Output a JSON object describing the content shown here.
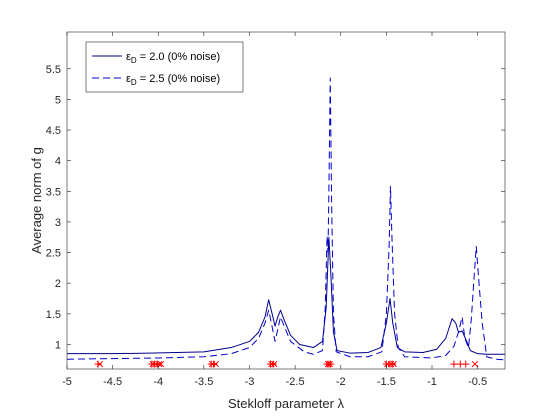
{
  "chart_data": {
    "type": "line",
    "xlabel": "Stekloff parameter λ",
    "ylabel": "Average norm of g",
    "xlim": [
      -5,
      -0.2
    ],
    "ylim": [
      0.6,
      6.1
    ],
    "xticks": [
      "-5",
      "-4.5",
      "-4",
      "-3.5",
      "-3",
      "-2.5",
      "-2",
      "-1.5",
      "-1",
      "-0.5"
    ],
    "yticks": [
      "1",
      "1.5",
      "2",
      "2.5",
      "3",
      "3.5",
      "4",
      "4.5",
      "5",
      "5.5"
    ],
    "grid": false,
    "legend_position": "top-left",
    "series": [
      {
        "name_parts": [
          "ε",
          "D",
          " = 2.0 (0% noise)"
        ],
        "color": "#00008B",
        "style": "solid",
        "points": [
          [
            -5,
            0.85
          ],
          [
            -4.5,
            0.85
          ],
          [
            -4.1,
            0.86
          ],
          [
            -3.8,
            0.87
          ],
          [
            -3.5,
            0.88
          ],
          [
            -3.2,
            0.95
          ],
          [
            -3.0,
            1.05
          ],
          [
            -2.9,
            1.2
          ],
          [
            -2.83,
            1.45
          ],
          [
            -2.79,
            1.73
          ],
          [
            -2.76,
            1.55
          ],
          [
            -2.72,
            1.3
          ],
          [
            -2.69,
            1.45
          ],
          [
            -2.66,
            1.56
          ],
          [
            -2.62,
            1.4
          ],
          [
            -2.55,
            1.15
          ],
          [
            -2.45,
            1.0
          ],
          [
            -2.3,
            0.95
          ],
          [
            -2.2,
            1.05
          ],
          [
            -2.16,
            1.6
          ],
          [
            -2.13,
            2.75
          ],
          [
            -2.11,
            2.2
          ],
          [
            -2.08,
            1.2
          ],
          [
            -2.04,
            0.9
          ],
          [
            -1.9,
            0.86
          ],
          [
            -1.7,
            0.87
          ],
          [
            -1.56,
            0.95
          ],
          [
            -1.5,
            1.35
          ],
          [
            -1.46,
            1.75
          ],
          [
            -1.43,
            1.35
          ],
          [
            -1.38,
            0.95
          ],
          [
            -1.3,
            0.88
          ],
          [
            -1.1,
            0.87
          ],
          [
            -0.95,
            0.92
          ],
          [
            -0.85,
            1.1
          ],
          [
            -0.78,
            1.42
          ],
          [
            -0.74,
            1.35
          ],
          [
            -0.71,
            1.2
          ],
          [
            -0.67,
            1.22
          ],
          [
            -0.62,
            1.05
          ],
          [
            -0.58,
            0.9
          ],
          [
            -0.5,
            0.85
          ],
          [
            -0.4,
            0.84
          ],
          [
            -0.2,
            0.84
          ]
        ]
      },
      {
        "name_parts": [
          "ε",
          "D",
          " = 2.5 (0% noise)"
        ],
        "color": "#0000CD",
        "style": "dashed",
        "points": [
          [
            -5,
            0.76
          ],
          [
            -4.5,
            0.77
          ],
          [
            -4.0,
            0.78
          ],
          [
            -3.5,
            0.8
          ],
          [
            -3.2,
            0.85
          ],
          [
            -3.0,
            0.95
          ],
          [
            -2.9,
            1.1
          ],
          [
            -2.83,
            1.35
          ],
          [
            -2.79,
            1.56
          ],
          [
            -2.76,
            1.35
          ],
          [
            -2.72,
            1.05
          ],
          [
            -2.69,
            1.25
          ],
          [
            -2.66,
            1.45
          ],
          [
            -2.62,
            1.3
          ],
          [
            -2.55,
            1.05
          ],
          [
            -2.4,
            0.88
          ],
          [
            -2.3,
            0.84
          ],
          [
            -2.2,
            0.9
          ],
          [
            -2.17,
            1.6
          ],
          [
            -2.15,
            2.77
          ],
          [
            -2.14,
            2.5
          ],
          [
            -2.13,
            3.5
          ],
          [
            -2.115,
            5.35
          ],
          [
            -2.1,
            3.3
          ],
          [
            -2.08,
            1.5
          ],
          [
            -2.05,
            0.88
          ],
          [
            -1.9,
            0.8
          ],
          [
            -1.7,
            0.8
          ],
          [
            -1.55,
            0.88
          ],
          [
            -1.5,
            1.5
          ],
          [
            -1.47,
            2.6
          ],
          [
            -1.455,
            3.58
          ],
          [
            -1.44,
            2.8
          ],
          [
            -1.41,
            1.5
          ],
          [
            -1.37,
            0.95
          ],
          [
            -1.3,
            0.8
          ],
          [
            -1.0,
            0.78
          ],
          [
            -0.85,
            0.82
          ],
          [
            -0.76,
            0.97
          ],
          [
            -0.71,
            1.2
          ],
          [
            -0.67,
            1.45
          ],
          [
            -0.64,
            1.1
          ],
          [
            -0.6,
            0.95
          ],
          [
            -0.57,
            1.4
          ],
          [
            -0.535,
            2.18
          ],
          [
            -0.515,
            2.6
          ],
          [
            -0.49,
            2.1
          ],
          [
            -0.45,
            1.35
          ],
          [
            -0.4,
            0.8
          ],
          [
            -0.3,
            0.76
          ],
          [
            -0.2,
            0.75
          ]
        ]
      }
    ],
    "markers": {
      "color": "#FF0000",
      "baseline_y": 0.68,
      "plus_x": [
        -4.66,
        -4.07,
        -4.04,
        -4.01,
        -3.42,
        -3.39,
        -2.77,
        -2.74,
        -2.15,
        -2.13,
        -2.11,
        -1.5,
        -1.46,
        -1.43,
        -0.76,
        -0.69,
        -0.63
      ],
      "cross_x": [
        -4.64,
        -4.06,
        -4.03,
        -3.99,
        -3.97,
        -3.41,
        -3.37,
        -2.76,
        -2.73,
        -2.14,
        -2.12,
        -1.49,
        -1.45,
        -1.42,
        -0.53
      ]
    }
  }
}
